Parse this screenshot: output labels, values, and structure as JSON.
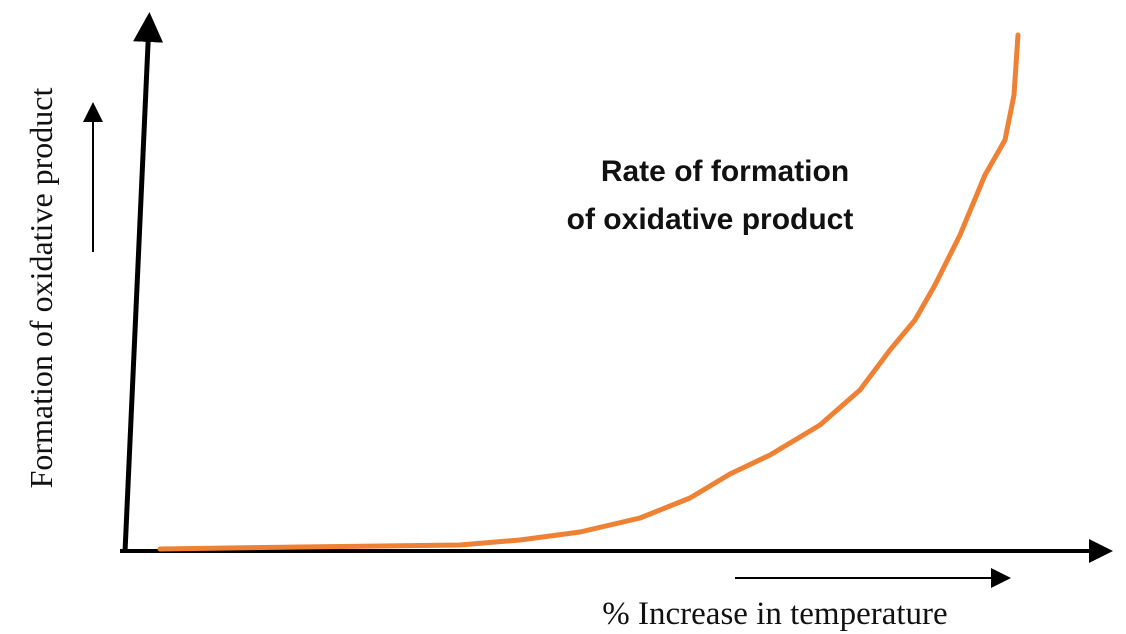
{
  "y_axis_label": "Formation of oxidative product",
  "x_axis_label": "% Increase in temperature",
  "annotation": {
    "lines": [
      "Rate of formation",
      "of oxidative product"
    ]
  }
}
